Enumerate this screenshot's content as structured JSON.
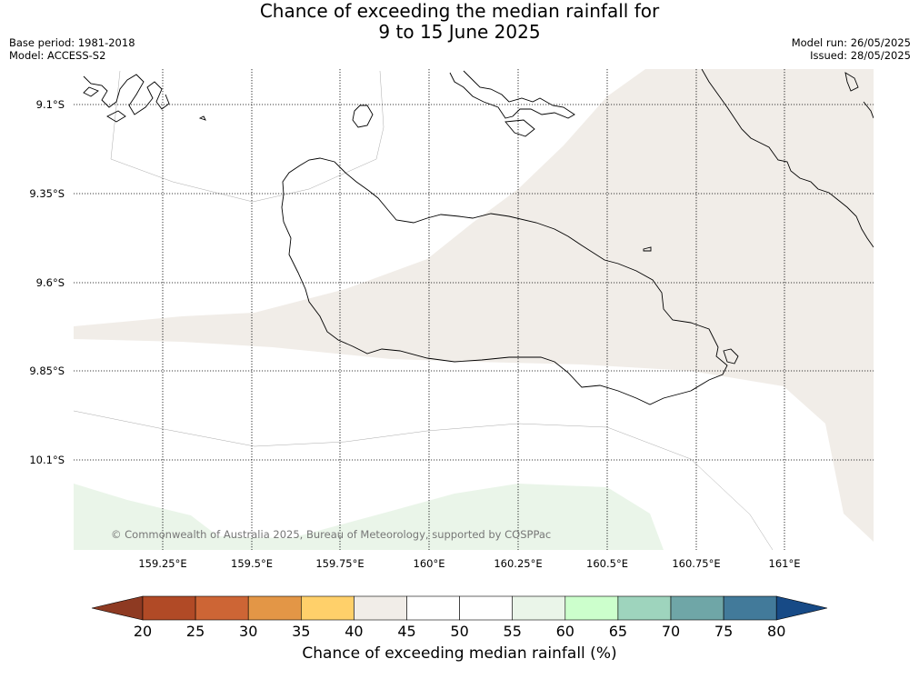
{
  "title": {
    "line1": "Chance of exceeding the median rainfall for",
    "line2": "9 to 15 June 2025"
  },
  "meta_left": {
    "base_period": "Base period: 1981-2018",
    "model": "Model: ACCESS-S2"
  },
  "meta_right": {
    "model_run": "Model run: 26/05/2025",
    "issued": "Issued: 28/05/2025"
  },
  "map": {
    "lat_labels": [
      "9.1°S",
      "9.35°S",
      "9.6°S",
      "9.85°S",
      "10.1°S"
    ],
    "lon_labels": [
      "159.25°E",
      "159.5°E",
      "159.75°E",
      "160°E",
      "160.25°E",
      "160.5°E",
      "160.75°E",
      "161°E"
    ],
    "copyright": "© Commonwealth of Australia 2025, Bureau of Meteorology, supported by COSPPac",
    "region_colors": {
      "band_40_45": "#f1ede8",
      "band_55_60": "#eaf5e9"
    }
  },
  "colorbar": {
    "title": "Chance of exceeding median rainfall (%)",
    "ticks": [
      "20",
      "25",
      "30",
      "35",
      "40",
      "45",
      "50",
      "55",
      "60",
      "65",
      "70",
      "75",
      "80"
    ],
    "under_color": "#8e3a22",
    "over_color": "#174a86",
    "colors": [
      "#b14a26",
      "#cd6535",
      "#e39646",
      "#ffd06a",
      "#f1ede8",
      "#ffffff",
      "#ffffff",
      "#eaf5e9",
      "#ccffcc",
      "#9ed4bd",
      "#6fa6a7",
      "#427a9a"
    ]
  }
}
